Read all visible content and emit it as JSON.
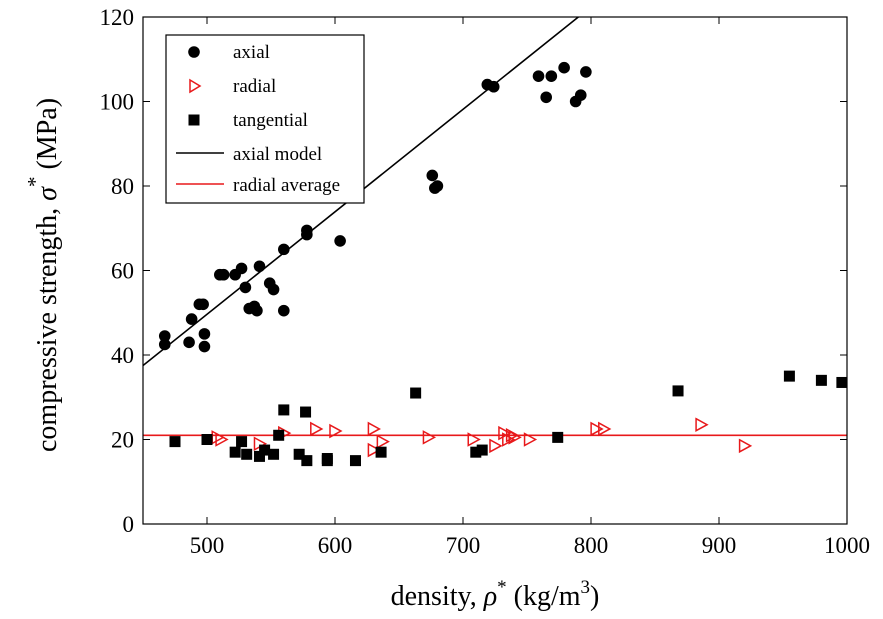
{
  "chart_data": {
    "type": "scatter",
    "title": "",
    "xlabel": {
      "text": "density, ",
      "symbol": "ρ",
      "sup": "*",
      "unit_pre": " (kg/m",
      "unit_sup": "3",
      "unit_post": ")"
    },
    "ylabel": {
      "text": "compressive strength, ",
      "symbol": "σ",
      "sup": "*",
      "unit": "  (MPa)"
    },
    "xlim": [
      450,
      1000
    ],
    "ylim": [
      0,
      120
    ],
    "xticks": [
      500,
      600,
      700,
      800,
      900,
      1000
    ],
    "yticks": [
      0,
      20,
      40,
      60,
      80,
      100,
      120
    ],
    "grid": false,
    "legend_position": "top-left",
    "series": [
      {
        "name": "axial",
        "marker": "circle",
        "color": "#000000",
        "points": [
          [
            467,
            44.5
          ],
          [
            467,
            42.5
          ],
          [
            486,
            43
          ],
          [
            488,
            48.5
          ],
          [
            494,
            52
          ],
          [
            497,
            52
          ],
          [
            498,
            45
          ],
          [
            498,
            42
          ],
          [
            510,
            59
          ],
          [
            513,
            59
          ],
          [
            522,
            59
          ],
          [
            527,
            60.5
          ],
          [
            530,
            56
          ],
          [
            533,
            51
          ],
          [
            537,
            51.5
          ],
          [
            539,
            50.5
          ],
          [
            541,
            61
          ],
          [
            549,
            57
          ],
          [
            552,
            55.5
          ],
          [
            560,
            65
          ],
          [
            560,
            50.5
          ],
          [
            578,
            68.5
          ],
          [
            578,
            69.5
          ],
          [
            604,
            67
          ],
          [
            676,
            82.5
          ],
          [
            678,
            79.5
          ],
          [
            680,
            80
          ],
          [
            719,
            104
          ],
          [
            724,
            103.5
          ],
          [
            759,
            106
          ],
          [
            765,
            101
          ],
          [
            769,
            106
          ],
          [
            779,
            108
          ],
          [
            788,
            100
          ],
          [
            792,
            101.5
          ],
          [
            796,
            107
          ]
        ]
      },
      {
        "name": "radial",
        "marker": "triangle-right-open",
        "color": "#e8191b",
        "points": [
          [
            508,
            20.5
          ],
          [
            511,
            20
          ],
          [
            541,
            19
          ],
          [
            560,
            21.5
          ],
          [
            585,
            22.5
          ],
          [
            600,
            22
          ],
          [
            630,
            22.5
          ],
          [
            630,
            17.5
          ],
          [
            637,
            19.5
          ],
          [
            673,
            20.5
          ],
          [
            708,
            20
          ],
          [
            725,
            18.5
          ],
          [
            732,
            21.5
          ],
          [
            735,
            20
          ],
          [
            738,
            21
          ],
          [
            740,
            20.5
          ],
          [
            752,
            20
          ],
          [
            804,
            22.5
          ],
          [
            810,
            22.5
          ],
          [
            886,
            23.5
          ],
          [
            920,
            18.5
          ]
        ]
      },
      {
        "name": "tangential",
        "marker": "square",
        "color": "#000000",
        "points": [
          [
            475,
            19.5
          ],
          [
            500,
            20
          ],
          [
            522,
            17
          ],
          [
            527,
            19.5
          ],
          [
            531,
            16.5
          ],
          [
            541,
            16
          ],
          [
            545,
            17.5
          ],
          [
            552,
            16.5
          ],
          [
            556,
            21
          ],
          [
            560,
            27
          ],
          [
            572,
            16.5
          ],
          [
            577,
            26.5
          ],
          [
            578,
            15
          ],
          [
            594,
            15
          ],
          [
            594,
            15.5
          ],
          [
            616,
            15
          ],
          [
            636,
            17
          ],
          [
            663,
            31
          ],
          [
            710,
            17
          ],
          [
            715,
            17.5
          ],
          [
            774,
            20.5
          ],
          [
            868,
            31.5
          ],
          [
            955,
            35
          ],
          [
            980,
            34
          ],
          [
            996,
            33.5
          ]
        ]
      },
      {
        "name": "axial model",
        "type": "line",
        "color": "#000000",
        "points": [
          [
            450,
            37.5
          ],
          [
            800,
            122.4
          ]
        ]
      },
      {
        "name": "radial average",
        "type": "line",
        "color": "#e8191b",
        "points": [
          [
            450,
            21
          ],
          [
            1000,
            21
          ]
        ]
      }
    ]
  }
}
